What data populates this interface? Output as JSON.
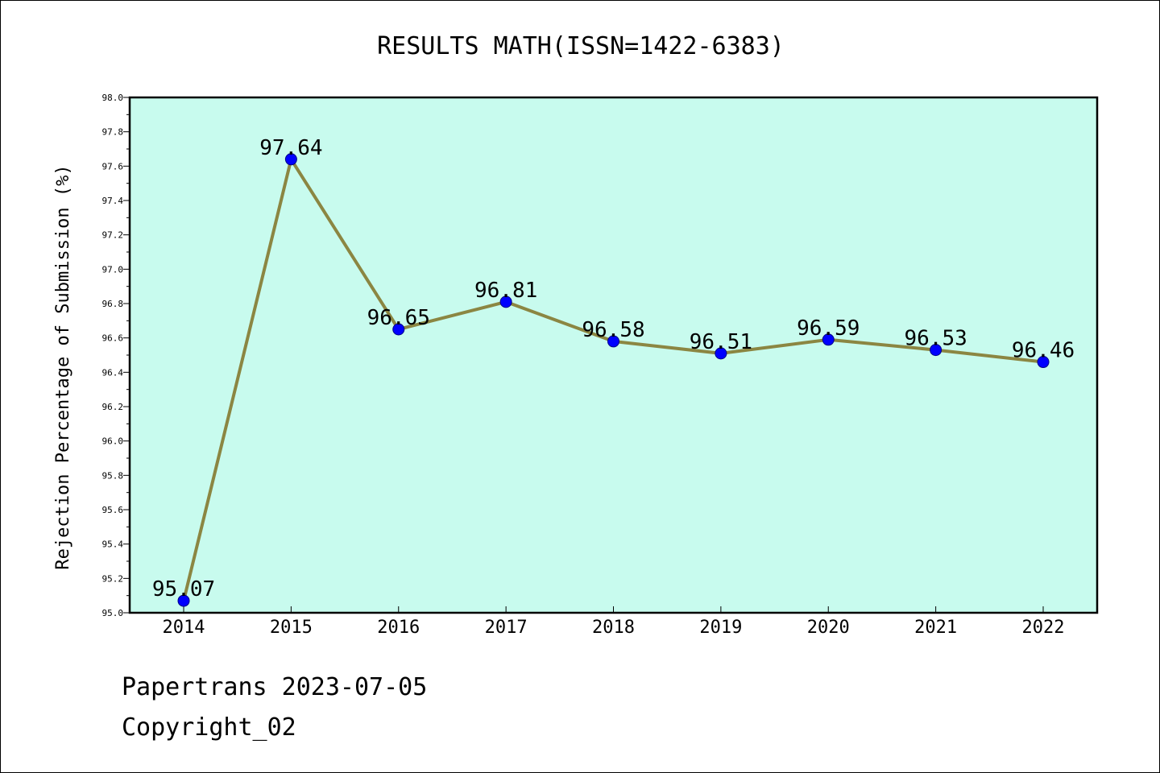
{
  "chart_data": {
    "type": "line",
    "title": "RESULTS MATH(ISSN=1422-6383)",
    "xlabel": "",
    "ylabel": "Rejection Percentage of Submission (%)",
    "categories": [
      "2014",
      "2015",
      "2016",
      "2017",
      "2018",
      "2019",
      "2020",
      "2021",
      "2022"
    ],
    "series": [
      {
        "values": [
          95.07,
          97.64,
          96.65,
          96.81,
          96.58,
          96.51,
          96.59,
          96.53,
          96.46
        ],
        "data_labels": [
          "95.07",
          "97.64",
          "96.65",
          "96.81",
          "96.58",
          "96.51",
          "96.59",
          "96.53",
          "96.46"
        ]
      }
    ],
    "ylim": [
      95.0,
      98.0
    ],
    "yticks": [
      "95.0",
      "95.2",
      "95.4",
      "95.6",
      "95.8",
      "96.0",
      "96.2",
      "96.4",
      "96.6",
      "96.8",
      "97.0",
      "97.2",
      "97.4",
      "97.6",
      "97.8",
      "98.0"
    ],
    "grid": false,
    "legend": "none",
    "colors": {
      "plot_background": "#c8fbee",
      "line": "#8b8642",
      "marker": "#0000ff",
      "axis": "#000000"
    }
  },
  "footer": {
    "line1": "Papertrans 2023-07-05",
    "line2": "Copyright_02"
  }
}
